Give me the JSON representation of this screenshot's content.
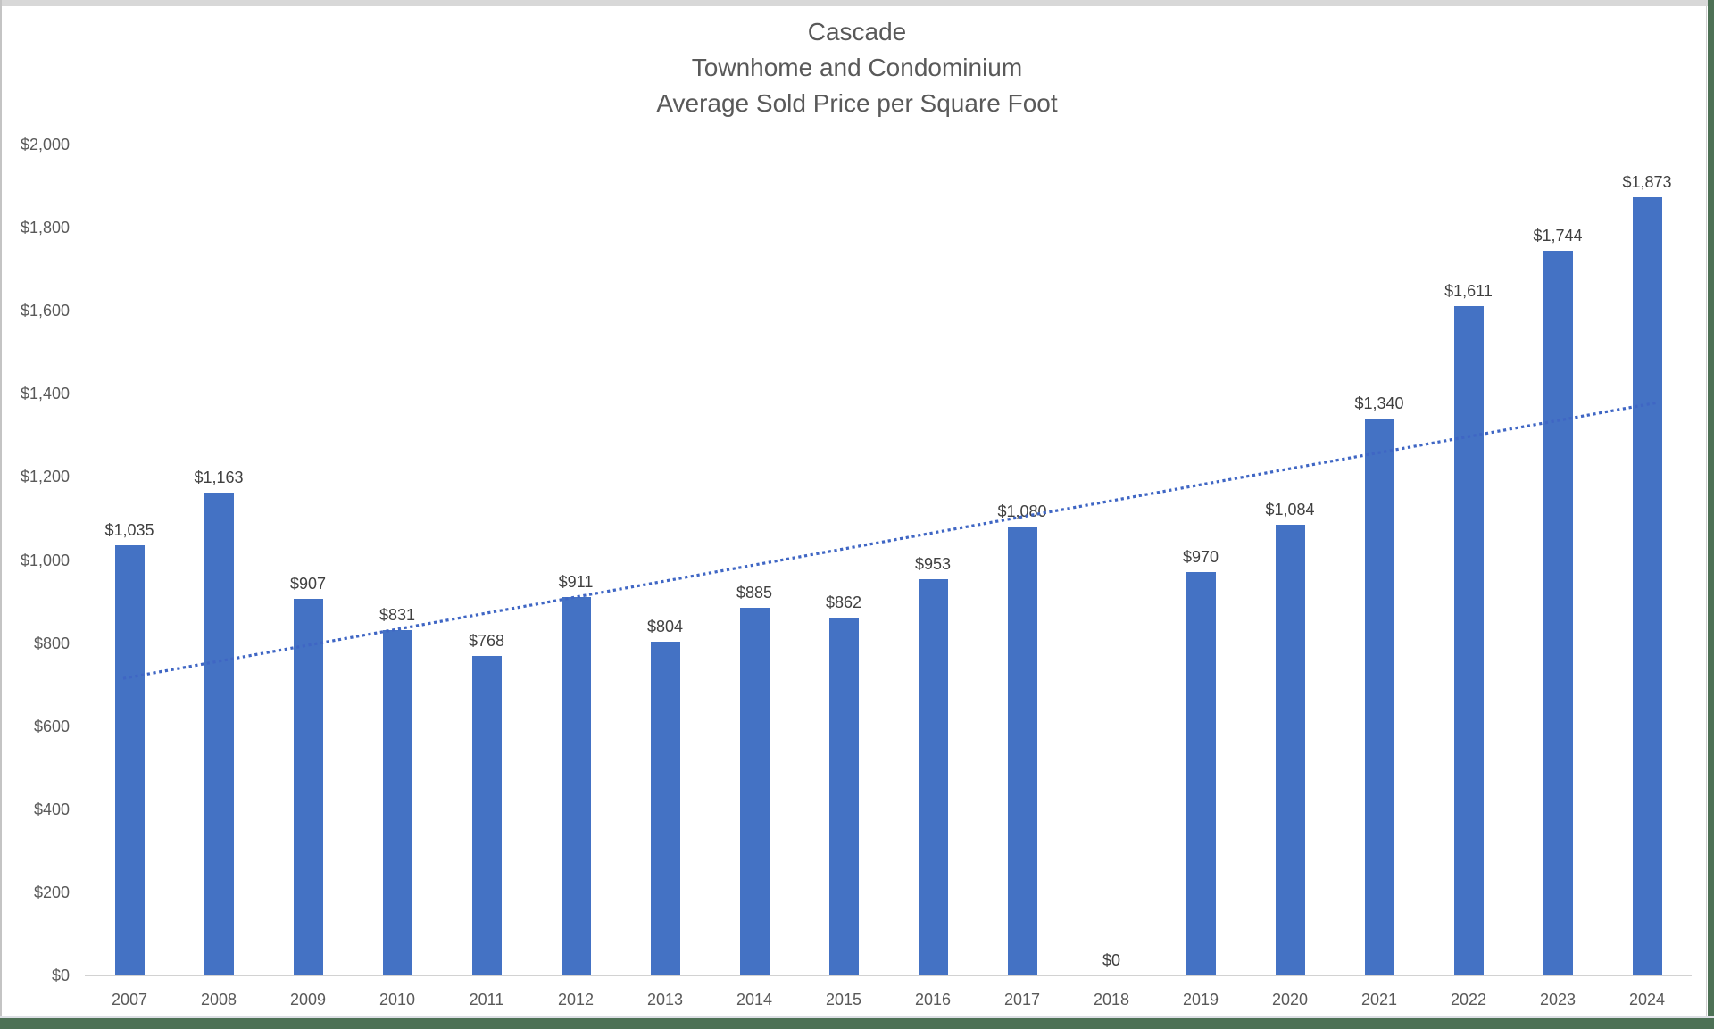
{
  "chart_data": {
    "type": "bar",
    "title_lines": [
      "Cascade",
      "Townhome and Condominium",
      "Average Sold Price per Square Foot"
    ],
    "categories": [
      "2007",
      "2008",
      "2009",
      "2010",
      "2011",
      "2012",
      "2013",
      "2014",
      "2015",
      "2016",
      "2017",
      "2018",
      "2019",
      "2020",
      "2021",
      "2022",
      "2023",
      "2024"
    ],
    "values": [
      1035,
      1163,
      907,
      831,
      768,
      911,
      804,
      885,
      862,
      953,
      1080,
      0,
      970,
      1084,
      1340,
      1611,
      1744,
      1873
    ],
    "data_labels": [
      "$1,035",
      "$1,163",
      "$907",
      "$831",
      "$768",
      "$911",
      "$804",
      "$885",
      "$862",
      "$953",
      "$1,080",
      "$0",
      "$970",
      "$1,084",
      "$1,340",
      "$1,611",
      "$1,744",
      "$1,873"
    ],
    "y_tick_labels": [
      "$0",
      "$200",
      "$400",
      "$600",
      "$800",
      "$1,000",
      "$1,200",
      "$1,400",
      "$1,600",
      "$1,800",
      "$2,000"
    ],
    "y_tick_values": [
      0,
      200,
      400,
      600,
      800,
      1000,
      1200,
      1400,
      1600,
      1800,
      2000
    ],
    "ylim": [
      0,
      2000
    ],
    "xlabel": "",
    "ylabel": "",
    "legend": "none",
    "grid": "horizontal",
    "bar_color": "#4472c4",
    "gridline_color": "#d9d9d9",
    "text_color_axis": "#595959",
    "text_color_labels": "#404040",
    "trendline": {
      "style": "dotted",
      "color": "#3f66c4",
      "start_value": 715,
      "end_value": 1379
    }
  },
  "frame": {
    "background": "#ffffff",
    "top_edge_color": "#d8d8d8",
    "side_edge_color": "#4d7155"
  }
}
